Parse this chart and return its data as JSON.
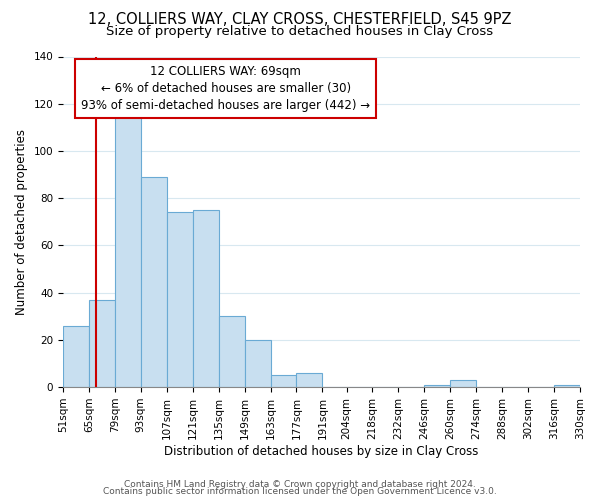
{
  "title": "12, COLLIERS WAY, CLAY CROSS, CHESTERFIELD, S45 9PZ",
  "subtitle": "Size of property relative to detached houses in Clay Cross",
  "xlabel": "Distribution of detached houses by size in Clay Cross",
  "ylabel": "Number of detached properties",
  "bar_color": "#c8dff0",
  "bar_edge_color": "#6aaad4",
  "grid_color": "#d8e8f0",
  "bin_edges": [
    51,
    65,
    79,
    93,
    107,
    121,
    135,
    149,
    163,
    177,
    191,
    204,
    218,
    232,
    246,
    260,
    274,
    288,
    302,
    316,
    330
  ],
  "bin_labels": [
    "51sqm",
    "65sqm",
    "79sqm",
    "93sqm",
    "107sqm",
    "121sqm",
    "135sqm",
    "149sqm",
    "163sqm",
    "177sqm",
    "191sqm",
    "204sqm",
    "218sqm",
    "232sqm",
    "246sqm",
    "260sqm",
    "274sqm",
    "288sqm",
    "302sqm",
    "316sqm",
    "330sqm"
  ],
  "bar_heights": [
    26,
    37,
    118,
    89,
    74,
    75,
    30,
    20,
    5,
    6,
    0,
    0,
    0,
    0,
    1,
    3,
    0,
    0,
    0,
    1
  ],
  "ylim": [
    0,
    140
  ],
  "yticks": [
    0,
    20,
    40,
    60,
    80,
    100,
    120,
    140
  ],
  "property_line_x": 69,
  "property_line_label": "12 COLLIERS WAY: 69sqm",
  "annotation_line1": "← 6% of detached houses are smaller (30)",
  "annotation_line2": "93% of semi-detached houses are larger (442) →",
  "annotation_box_color": "#ffffff",
  "annotation_box_edge_color": "#cc0000",
  "property_line_color": "#cc0000",
  "footer_line1": "Contains HM Land Registry data © Crown copyright and database right 2024.",
  "footer_line2": "Contains public sector information licensed under the Open Government Licence v3.0.",
  "background_color": "#ffffff",
  "title_fontsize": 10.5,
  "subtitle_fontsize": 9.5,
  "axis_label_fontsize": 8.5,
  "tick_fontsize": 7.5,
  "annotation_fontsize": 8.5,
  "footer_fontsize": 6.5
}
